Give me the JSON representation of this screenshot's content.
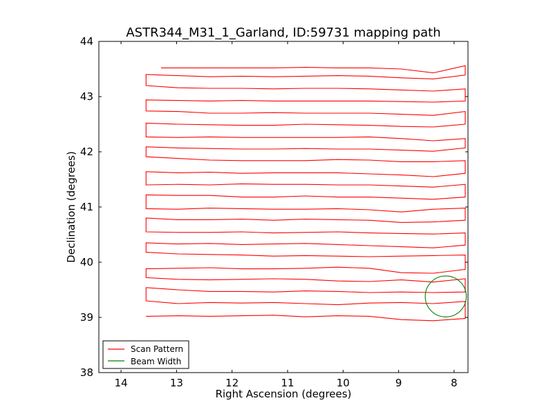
{
  "chart_data": {
    "type": "line",
    "title": "ASTR344_M31_1_Garland, ID:59731 mapping path",
    "xlabel": "Right Ascension (degrees)",
    "ylabel": "Declination (degrees)",
    "xlim": [
      14.4,
      7.75
    ],
    "ylim": [
      38,
      44
    ],
    "xticks": [
      14,
      13,
      12,
      11,
      10,
      9,
      8
    ],
    "yticks": [
      38,
      39,
      40,
      41,
      42,
      43,
      44
    ],
    "grid": false,
    "legend_position": "lower-left",
    "series": [
      {
        "name": "Scan Pattern",
        "color": "#ff0000",
        "type": "scan-path",
        "rows": [
          {
            "dec": 39.02,
            "wiggle": [
              0.0,
              0.01,
              0.0,
              0.01,
              0.02,
              -0.01,
              0.01,
              0.0,
              -0.06,
              -0.08,
              -0.04
            ]
          },
          {
            "dec": 39.23,
            "wiggle": [
              0.07,
              0.02,
              0.04,
              0.03,
              0.04,
              0.02,
              0.0,
              0.03,
              0.04,
              0.02,
              0.06
            ]
          },
          {
            "dec": 39.46,
            "wiggle": [
              0.08,
              0.04,
              0.01,
              0.01,
              0.0,
              0.02,
              0.01,
              -0.01,
              0.0,
              -0.01,
              0.0
            ]
          },
          {
            "dec": 39.67,
            "wiggle": [
              0.05,
              0.02,
              0.01,
              0.02,
              0.03,
              0.02,
              -0.01,
              -0.02,
              0.01,
              -0.03,
              0.03
            ]
          },
          {
            "dec": 39.88,
            "wiggle": [
              0.0,
              0.01,
              0.02,
              0.0,
              0.0,
              0.01,
              0.03,
              0.01,
              -0.07,
              -0.08,
              -0.01
            ]
          },
          {
            "dec": 40.1,
            "wiggle": [
              0.08,
              0.05,
              0.04,
              0.03,
              0.01,
              0.02,
              0.01,
              0.0,
              0.01,
              0.02,
              0.03
            ]
          },
          {
            "dec": 40.31,
            "wiggle": [
              0.04,
              0.02,
              0.03,
              0.01,
              0.02,
              0.03,
              0.01,
              -0.01,
              -0.03,
              -0.05,
              0.0
            ]
          },
          {
            "dec": 40.53,
            "wiggle": [
              0.02,
              0.01,
              0.01,
              0.02,
              0.0,
              0.01,
              0.02,
              0.0,
              -0.01,
              -0.02,
              0.0
            ]
          },
          {
            "dec": 40.75,
            "wiggle": [
              0.05,
              0.02,
              0.02,
              0.03,
              0.01,
              0.03,
              0.02,
              0.01,
              -0.03,
              -0.02,
              0.01
            ]
          },
          {
            "dec": 40.96,
            "wiggle": [
              0.01,
              0.0,
              0.02,
              0.01,
              0.0,
              0.0,
              0.01,
              -0.01,
              -0.05,
              0.0,
              0.02
            ]
          },
          {
            "dec": 41.18,
            "wiggle": [
              0.04,
              0.03,
              0.03,
              0.0,
              0.0,
              0.02,
              0.0,
              0.0,
              -0.02,
              -0.04,
              0.0
            ]
          },
          {
            "dec": 41.4,
            "wiggle": [
              0.0,
              0.01,
              0.0,
              0.02,
              0.01,
              0.01,
              0.0,
              0.0,
              -0.02,
              -0.04,
              0.01
            ]
          },
          {
            "dec": 41.61,
            "wiggle": [
              0.03,
              0.01,
              0.02,
              0.0,
              0.01,
              0.01,
              0.01,
              -0.01,
              -0.03,
              -0.06,
              0.0
            ]
          },
          {
            "dec": 41.84,
            "wiggle": [
              0.07,
              0.04,
              0.01,
              0.0,
              0.0,
              0.0,
              0.02,
              0.01,
              -0.02,
              -0.02,
              0.0
            ]
          },
          {
            "dec": 42.05,
            "wiggle": [
              0.04,
              0.02,
              0.01,
              0.0,
              0.0,
              0.01,
              0.0,
              0.0,
              -0.02,
              -0.04,
              0.02
            ]
          },
          {
            "dec": 42.26,
            "wiggle": [
              0.01,
              0.0,
              0.01,
              0.0,
              0.0,
              0.0,
              0.0,
              0.01,
              -0.02,
              -0.06,
              -0.02
            ]
          },
          {
            "dec": 42.48,
            "wiggle": [
              0.04,
              0.02,
              0.01,
              0.0,
              0.0,
              0.02,
              0.01,
              0.0,
              -0.02,
              -0.03,
              0.02
            ]
          },
          {
            "dec": 42.7,
            "wiggle": [
              0.04,
              0.03,
              0.0,
              0.0,
              0.01,
              0.0,
              0.0,
              0.0,
              -0.02,
              -0.04,
              0.03
            ]
          },
          {
            "dec": 42.92,
            "wiggle": [
              0.02,
              0.01,
              0.0,
              0.01,
              0.0,
              0.0,
              0.0,
              0.0,
              -0.01,
              -0.02,
              0.0
            ]
          },
          {
            "dec": 43.14,
            "wiggle": [
              0.06,
              0.02,
              0.01,
              0.01,
              0.0,
              0.01,
              0.01,
              0.0,
              -0.02,
              -0.04,
              0.0
            ]
          },
          {
            "dec": 43.36,
            "wiggle": [
              0.04,
              0.02,
              0.0,
              0.01,
              0.0,
              0.01,
              0.02,
              0.01,
              -0.02,
              -0.04,
              0.03
            ]
          },
          {
            "dec": 43.52,
            "wiggle": [
              0.0,
              0.0,
              0.0,
              0.0,
              0.0,
              0.01,
              0.0,
              0.0,
              -0.02,
              -0.09,
              0.04
            ]
          }
        ],
        "ra_start": 13.55,
        "ra_end": 7.8,
        "first_ra": 13.28
      },
      {
        "name": "Beam Width",
        "color": "#008000",
        "type": "circle",
        "center": [
          8.15,
          39.38
        ],
        "radius_deg": 0.37
      }
    ]
  }
}
